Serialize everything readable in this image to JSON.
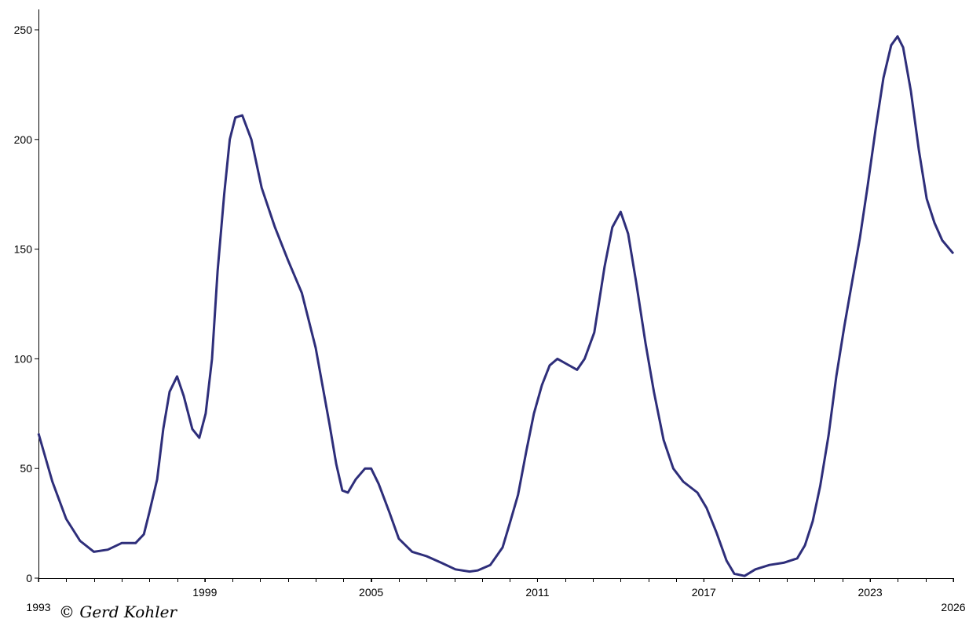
{
  "chart_data": {
    "type": "line",
    "annotation": "© Gerd Kohler",
    "x": [
      1993.0,
      1993.5,
      1994.0,
      1994.5,
      1995.0,
      1995.5,
      1996.0,
      1996.5,
      1996.8,
      1997.0,
      1997.28,
      1997.5,
      1997.73,
      1998.0,
      1998.24,
      1998.55,
      1998.8,
      1999.03,
      1999.26,
      1999.46,
      1999.7,
      1999.9,
      2000.1,
      2000.35,
      2000.68,
      2001.05,
      2001.53,
      2002.0,
      2002.5,
      2003.0,
      2003.5,
      2003.74,
      2003.96,
      2004.16,
      2004.44,
      2004.78,
      2005.0,
      2005.27,
      2005.66,
      2006.0,
      2006.48,
      2007.0,
      2007.53,
      2008.04,
      2008.55,
      2008.84,
      2009.3,
      2009.74,
      2010.0,
      2010.3,
      2010.6,
      2010.87,
      2011.16,
      2011.44,
      2011.72,
      2012.0,
      2012.43,
      2012.7,
      2013.05,
      2013.42,
      2013.7,
      2014.0,
      2014.27,
      2014.56,
      2014.9,
      2015.2,
      2015.55,
      2015.9,
      2016.26,
      2016.77,
      2017.1,
      2017.45,
      2017.82,
      2018.1,
      2018.47,
      2018.86,
      2019.37,
      2019.88,
      2020.37,
      2020.65,
      2020.93,
      2021.2,
      2021.5,
      2021.78,
      2022.07,
      2022.35,
      2022.63,
      2022.9,
      2023.2,
      2023.48,
      2023.76,
      2023.99,
      2024.19,
      2024.47,
      2024.76,
      2025.04,
      2025.32,
      2025.6,
      2026.0
    ],
    "series": [
      {
        "color": "#2e2e7a",
        "values": [
          66,
          44,
          27,
          17,
          12,
          13,
          16,
          16,
          20,
          30,
          45,
          68,
          85,
          92,
          83,
          68,
          64,
          75,
          100,
          140,
          175,
          200,
          210,
          211,
          200,
          178,
          160,
          145,
          130,
          105,
          70,
          52,
          40,
          39,
          45,
          50,
          50,
          43,
          30,
          18,
          12,
          10,
          7,
          4,
          3,
          3.5,
          6,
          14,
          25,
          38,
          58,
          75,
          88,
          97,
          100,
          98,
          95,
          100,
          112,
          142,
          160,
          167,
          157,
          135,
          107,
          85,
          63,
          50,
          44,
          39,
          32,
          21,
          8,
          2,
          1,
          4,
          6,
          7,
          9,
          15,
          26,
          42,
          65,
          92,
          115,
          135,
          155,
          178,
          205,
          228,
          243,
          247,
          242,
          222,
          195,
          173,
          162,
          154,
          148
        ]
      }
    ],
    "xlim": [
      1993,
      2026
    ],
    "xticks": [
      1993,
      1999,
      2005,
      2011,
      2017,
      2023,
      2026
    ],
    "ylim": [
      0,
      250
    ],
    "yticks": [
      0,
      50,
      100,
      150,
      200,
      250
    ]
  }
}
